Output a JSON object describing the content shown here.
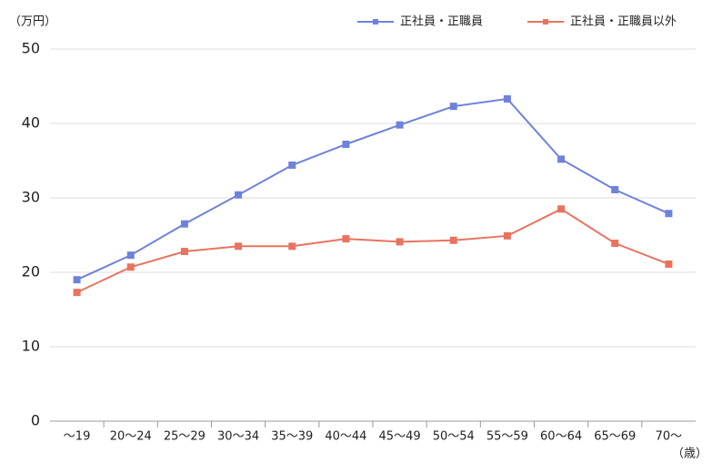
{
  "chart_data": {
    "type": "line",
    "y_unit_label": "（万円）",
    "x_unit_label": "（歳）",
    "categories": [
      "～19",
      "20～24",
      "25～29",
      "30～34",
      "35～39",
      "40～44",
      "45～49",
      "50～54",
      "55～59",
      "60～64",
      "65～69",
      "70～"
    ],
    "series": [
      {
        "name": "正社員・正職員",
        "color": "#6f82d9",
        "values": [
          19.0,
          22.3,
          26.5,
          30.4,
          34.4,
          37.2,
          39.8,
          42.3,
          43.3,
          35.2,
          31.1,
          27.9
        ]
      },
      {
        "name": "正社員・正職員以外",
        "color": "#e8735f",
        "values": [
          17.3,
          20.7,
          22.8,
          23.5,
          23.5,
          24.5,
          24.1,
          24.3,
          24.9,
          28.5,
          23.9,
          21.1
        ]
      }
    ],
    "ylim": [
      0,
      50
    ],
    "yticks": [
      0,
      10,
      20,
      30,
      40,
      50
    ],
    "grid": true
  }
}
